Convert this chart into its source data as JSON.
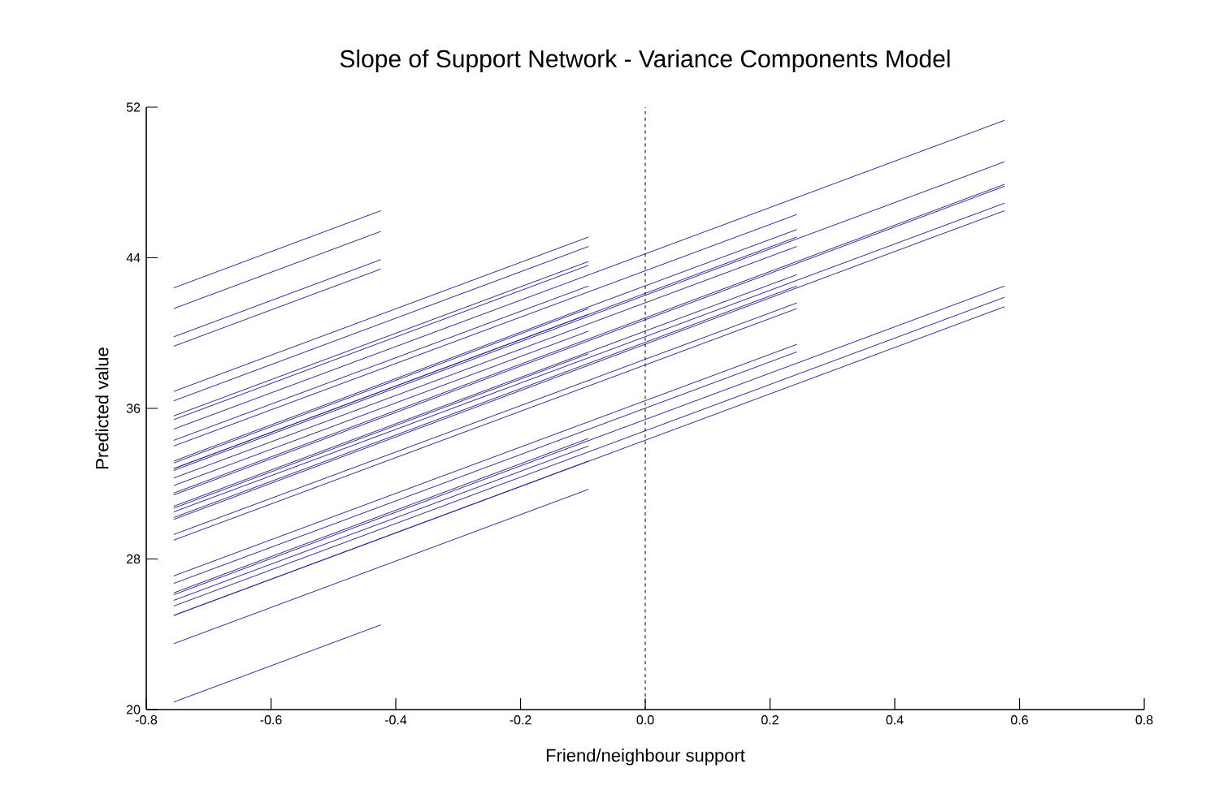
{
  "chart_data": {
    "type": "line",
    "title": "Slope of Support Network - Variance Components Model",
    "xlabel": "Friend/neighbour support",
    "ylabel": "Predicted value",
    "xlim": [
      -0.8,
      0.8
    ],
    "ylim": [
      20,
      52
    ],
    "xticks": [
      -0.8,
      -0.6,
      -0.4,
      -0.2,
      {
        "value": 0,
        "label": "0.0"
      },
      0.2,
      0.4,
      0.6,
      0.8
    ],
    "yticks": [
      20,
      28,
      36,
      44,
      52
    ],
    "line_style": "solid",
    "ref_lines": [
      {
        "axis": "x",
        "value": 0,
        "color": "#000000",
        "line_style": "dashed"
      }
    ],
    "series": [
      {
        "color": "#2b2b9c",
        "x": [
          -0.756,
          -0.424
        ],
        "values": [
          42.4,
          46.5
        ]
      },
      {
        "color": "#2b2b9c",
        "x": [
          -0.756,
          -0.424
        ],
        "values": [
          41.3,
          45.4
        ]
      },
      {
        "color": "#2b2b9c",
        "x": [
          -0.756,
          -0.424
        ],
        "values": [
          39.8,
          43.9
        ]
      },
      {
        "color": "#2b2b9c",
        "x": [
          -0.756,
          -0.424
        ],
        "values": [
          39.3,
          43.4
        ]
      },
      {
        "color": "#2b2b9c",
        "x": [
          -0.756,
          -0.424
        ],
        "values": [
          20.4,
          24.5
        ]
      },
      {
        "color": "#2b2b9c",
        "x": [
          -0.756,
          -0.091
        ],
        "values": [
          36.9,
          45.1
        ]
      },
      {
        "color": "#2b2b9c",
        "x": [
          -0.756,
          -0.091
        ],
        "values": [
          36.4,
          44.6
        ]
      },
      {
        "color": "#2b2b9c",
        "x": [
          -0.756,
          -0.091
        ],
        "values": [
          35.6,
          43.8
        ]
      },
      {
        "color": "#2b2b9c",
        "x": [
          -0.756,
          -0.091
        ],
        "values": [
          35.4,
          43.6
        ]
      },
      {
        "color": "#2b2b9c",
        "x": [
          -0.756,
          -0.091
        ],
        "values": [
          34.3,
          42.5
        ]
      },
      {
        "color": "#2b2b9c",
        "x": [
          -0.756,
          -0.091
        ],
        "values": [
          33.1,
          41.3
        ]
      },
      {
        "color": "#2b2b9c",
        "x": [
          -0.756,
          -0.091
        ],
        "values": [
          32.8,
          41.0
        ]
      },
      {
        "color": "#2b2b9c",
        "x": [
          -0.756,
          -0.091
        ],
        "values": [
          31.9,
          40.1
        ]
      },
      {
        "color": "#2b2b9c",
        "x": [
          -0.756,
          -0.091
        ],
        "values": [
          30.7,
          38.9
        ]
      },
      {
        "color": "#2b2b9c",
        "x": [
          -0.756,
          -0.091
        ],
        "values": [
          26.2,
          34.4
        ]
      },
      {
        "color": "#2b2b9c",
        "x": [
          -0.756,
          -0.091
        ],
        "values": [
          25.8,
          34.0
        ]
      },
      {
        "color": "#2b2b9c",
        "x": [
          -0.756,
          -0.091
        ],
        "values": [
          25.0,
          33.2
        ]
      },
      {
        "color": "#2b2b9c",
        "x": [
          -0.756,
          -0.091
        ],
        "values": [
          23.5,
          31.7
        ]
      },
      {
        "color": "#2b2b9c",
        "x": [
          -0.756,
          0.243
        ],
        "values": [
          34.0,
          46.3
        ]
      },
      {
        "color": "#2b2b9c",
        "x": [
          -0.756,
          0.243
        ],
        "values": [
          33.2,
          45.5
        ]
      },
      {
        "color": "#2b2b9c",
        "x": [
          -0.756,
          0.243
        ],
        "values": [
          32.8,
          45.1
        ]
      },
      {
        "color": "#2b2b9c",
        "x": [
          -0.756,
          0.243
        ],
        "values": [
          32.3,
          44.6
        ]
      },
      {
        "color": "#2b2b9c",
        "x": [
          -0.756,
          0.243
        ],
        "values": [
          30.8,
          43.1
        ]
      },
      {
        "color": "#2b2b9c",
        "x": [
          -0.756,
          0.243
        ],
        "values": [
          30.2,
          42.5
        ]
      },
      {
        "color": "#2b2b9c",
        "x": [
          -0.756,
          0.243
        ],
        "values": [
          29.3,
          41.6
        ]
      },
      {
        "color": "#2b2b9c",
        "x": [
          -0.756,
          0.243
        ],
        "values": [
          29.0,
          41.3
        ]
      },
      {
        "color": "#2b2b9c",
        "x": [
          -0.756,
          0.243
        ],
        "values": [
          27.1,
          39.4
        ]
      },
      {
        "color": "#2b2b9c",
        "x": [
          -0.756,
          0.243
        ],
        "values": [
          26.7,
          39.0
        ]
      },
      {
        "color": "#2b2b9c",
        "x": [
          -0.756,
          0.576
        ],
        "values": [
          34.9,
          51.3
        ]
      },
      {
        "color": "#2b2b9c",
        "x": [
          -0.756,
          0.576
        ],
        "values": [
          32.7,
          49.1
        ]
      },
      {
        "color": "#2b2b9c",
        "x": [
          -0.756,
          0.576
        ],
        "values": [
          31.5,
          47.9
        ]
      },
      {
        "color": "#2b2b9c",
        "x": [
          -0.756,
          0.576
        ],
        "values": [
          31.4,
          47.8
        ]
      },
      {
        "color": "#2b2b9c",
        "x": [
          -0.756,
          0.576
        ],
        "values": [
          30.5,
          46.9
        ]
      },
      {
        "color": "#2b2b9c",
        "x": [
          -0.756,
          0.576
        ],
        "values": [
          30.1,
          46.5
        ]
      },
      {
        "color": "#2b2b9c",
        "x": [
          -0.756,
          0.576
        ],
        "values": [
          26.1,
          42.5
        ]
      },
      {
        "color": "#2b2b9c",
        "x": [
          -0.756,
          0.576
        ],
        "values": [
          25.5,
          41.9
        ]
      },
      {
        "color": "#2b2b9c",
        "x": [
          -0.756,
          0.576
        ],
        "values": [
          25.0,
          41.4
        ]
      }
    ]
  }
}
